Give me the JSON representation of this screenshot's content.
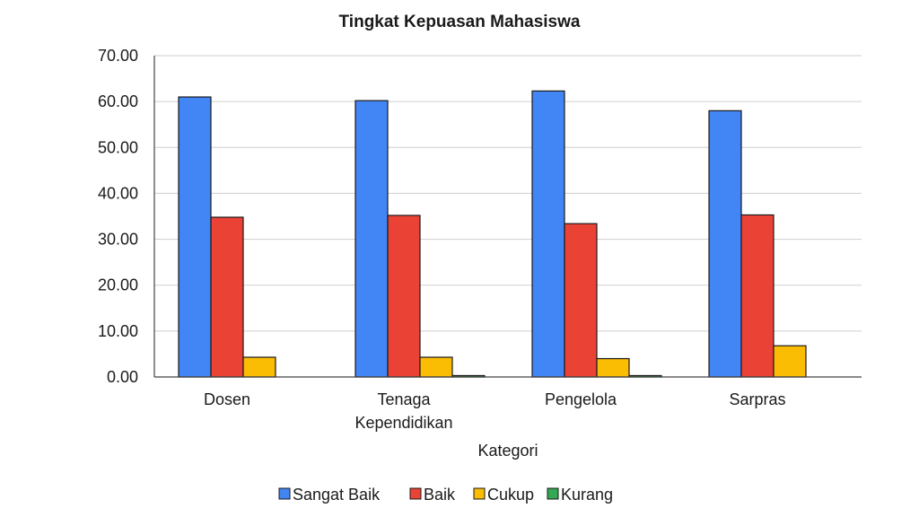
{
  "chart_data": {
    "type": "bar",
    "title": "Tingkat Kepuasan Mahasiswa",
    "xlabel": "Kategori",
    "ylabel": "",
    "ylim": [
      0,
      70
    ],
    "yticks": [
      "0.00",
      "10.00",
      "20.00",
      "30.00",
      "40.00",
      "50.00",
      "60.00",
      "70.00"
    ],
    "grid": true,
    "legend_position": "bottom",
    "categories": [
      "Dosen",
      "Tenaga Kependidikan",
      "Pengelola",
      "Sarpras"
    ],
    "series": [
      {
        "name": "Sangat Baik",
        "color": "#4285f4",
        "values": [
          61.0,
          60.2,
          62.3,
          58.0
        ]
      },
      {
        "name": "Baik",
        "color": "#ea4335",
        "values": [
          34.8,
          35.2,
          33.4,
          35.3
        ]
      },
      {
        "name": "Cukup",
        "color": "#fbbc04",
        "values": [
          4.3,
          4.3,
          4.0,
          6.8
        ]
      },
      {
        "name": "Kurang",
        "color": "#34a853",
        "values": [
          0.0,
          0.3,
          0.3,
          0.0
        ]
      }
    ]
  }
}
